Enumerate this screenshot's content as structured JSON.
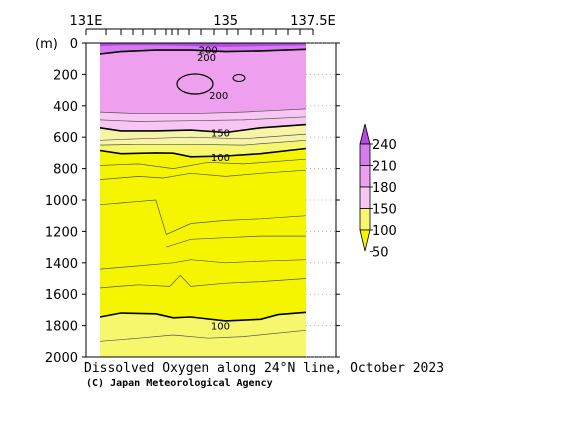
{
  "chart_data": {
    "type": "contour",
    "title": "Dissolved Oxygen along 24°N line, October 2023",
    "credit": "(C) Japan Meteorological Agency",
    "x_axis": {
      "ticks": [
        {
          "value": 131,
          "label": "131E"
        },
        {
          "value": 135,
          "label": "135"
        },
        {
          "value": 137.5,
          "label": "137.5E"
        }
      ],
      "range": [
        131,
        137.5
      ],
      "position": "top"
    },
    "y_axis": {
      "unit_label": "(m)",
      "range": [
        0,
        2000
      ],
      "inverted": true,
      "ticks": [
        0,
        200,
        400,
        600,
        800,
        1000,
        1200,
        1400,
        1600,
        1800,
        2000
      ]
    },
    "colorbar": {
      "levels": [
        50,
        100,
        150,
        180,
        210,
        240
      ],
      "labels": [
        "50",
        "100",
        "150",
        "180",
        "210",
        "240"
      ],
      "colors": [
        "#f5f500",
        "#f7f76e",
        "#f7c6f2",
        "#eea0ee",
        "#d77cee",
        "#b44ae0"
      ]
    },
    "contour_labels": [
      {
        "text": "200",
        "x": 134.5,
        "depth": 40
      },
      {
        "text": "200",
        "x": 134.45,
        "depth": 90
      },
      {
        "text": "200",
        "x": 134.8,
        "depth": 330
      },
      {
        "text": "150",
        "x": 134.85,
        "depth": 570
      },
      {
        "text": "100",
        "x": 134.85,
        "depth": 725
      },
      {
        "text": "100",
        "x": 134.85,
        "depth": 1800
      }
    ],
    "contours": [
      {
        "value": 100,
        "bold": true,
        "pts": [
          [
            131.4,
            685
          ],
          [
            132,
            705
          ],
          [
            133,
            700
          ],
          [
            133.5,
            702
          ],
          [
            134,
            725
          ],
          [
            135,
            720
          ],
          [
            136,
            705
          ],
          [
            137.3,
            672
          ]
        ]
      },
      {
        "value": 150,
        "bold": true,
        "pts": [
          [
            131.4,
            540
          ],
          [
            132,
            560
          ],
          [
            133,
            560
          ],
          [
            134,
            555
          ],
          [
            135,
            570
          ],
          [
            136,
            540
          ],
          [
            137.3,
            520
          ]
        ]
      },
      {
        "value": 200,
        "bold": true,
        "pts": [
          [
            131.4,
            70
          ],
          [
            132,
            55
          ],
          [
            133,
            45
          ],
          [
            134,
            45
          ],
          [
            135,
            55
          ],
          [
            136,
            50
          ],
          [
            137.3,
            40
          ]
        ]
      },
      {
        "value": 100,
        "bold": true,
        "pts": [
          [
            131.4,
            1745
          ],
          [
            132,
            1720
          ],
          [
            133,
            1725
          ],
          [
            133.5,
            1750
          ],
          [
            134,
            1745
          ],
          [
            135,
            1770
          ],
          [
            136,
            1760
          ],
          [
            136.5,
            1730
          ],
          [
            137.3,
            1715
          ]
        ]
      },
      {
        "value": 90,
        "bold": false,
        "pts": [
          [
            131.4,
            780
          ],
          [
            132.5,
            770
          ],
          [
            133.5,
            800
          ],
          [
            134.5,
            760
          ],
          [
            135.5,
            770
          ],
          [
            137.3,
            740
          ]
        ]
      },
      {
        "value": 80,
        "bold": false,
        "pts": [
          [
            131.4,
            870
          ],
          [
            132.5,
            850
          ],
          [
            133.2,
            860
          ],
          [
            134,
            830
          ],
          [
            135,
            850
          ],
          [
            136,
            830
          ],
          [
            137.3,
            810
          ]
        ]
      },
      {
        "value": 75,
        "bold": false,
        "pts": [
          [
            131.4,
            1030
          ],
          [
            133,
            1000
          ],
          [
            133.3,
            1220
          ],
          [
            134,
            1150
          ],
          [
            135,
            1130
          ],
          [
            136,
            1120
          ],
          [
            137.3,
            1100
          ]
        ]
      },
      {
        "value": 70,
        "bold": false,
        "pts": [
          [
            133.3,
            1300
          ],
          [
            134,
            1250
          ],
          [
            135,
            1240
          ],
          [
            136,
            1230
          ],
          [
            137.3,
            1230
          ]
        ]
      },
      {
        "value": 65,
        "bold": false,
        "pts": [
          [
            131.4,
            1440
          ],
          [
            132.5,
            1420
          ],
          [
            133.5,
            1400
          ],
          [
            134,
            1380
          ],
          [
            135,
            1400
          ],
          [
            136,
            1390
          ],
          [
            137.3,
            1380
          ]
        ]
      },
      {
        "value": 60,
        "bold": false,
        "pts": [
          [
            131.4,
            1560
          ],
          [
            132.5,
            1540
          ],
          [
            133.4,
            1550
          ],
          [
            133.7,
            1480
          ],
          [
            134,
            1550
          ],
          [
            135,
            1530
          ],
          [
            136,
            1520
          ],
          [
            137.3,
            1500
          ]
        ]
      },
      {
        "value": 90,
        "bold": false,
        "pts": [
          [
            131.4,
            1900
          ],
          [
            132.5,
            1880
          ],
          [
            133.5,
            1860
          ],
          [
            134.5,
            1880
          ],
          [
            135.5,
            1870
          ],
          [
            137.3,
            1830
          ]
        ]
      },
      {
        "value": 140,
        "bold": false,
        "pts": [
          [
            131.4,
            620
          ],
          [
            132.5,
            610
          ],
          [
            134,
            600
          ],
          [
            135.5,
            610
          ],
          [
            137.3,
            580
          ]
        ]
      },
      {
        "value": 120,
        "bold": false,
        "pts": [
          [
            131.4,
            650
          ],
          [
            132.5,
            645
          ],
          [
            134,
            645
          ],
          [
            135.5,
            650
          ],
          [
            137.3,
            620
          ]
        ]
      },
      {
        "value": 180,
        "bold": false,
        "pts": [
          [
            131.4,
            440
          ],
          [
            132.5,
            450
          ],
          [
            134,
            450
          ],
          [
            135.5,
            440
          ],
          [
            137.3,
            420
          ]
        ]
      },
      {
        "value": 170,
        "bold": false,
        "pts": [
          [
            131.4,
            490
          ],
          [
            132.5,
            500
          ],
          [
            134,
            495
          ],
          [
            135.5,
            490
          ],
          [
            137.3,
            470
          ]
        ]
      }
    ]
  }
}
